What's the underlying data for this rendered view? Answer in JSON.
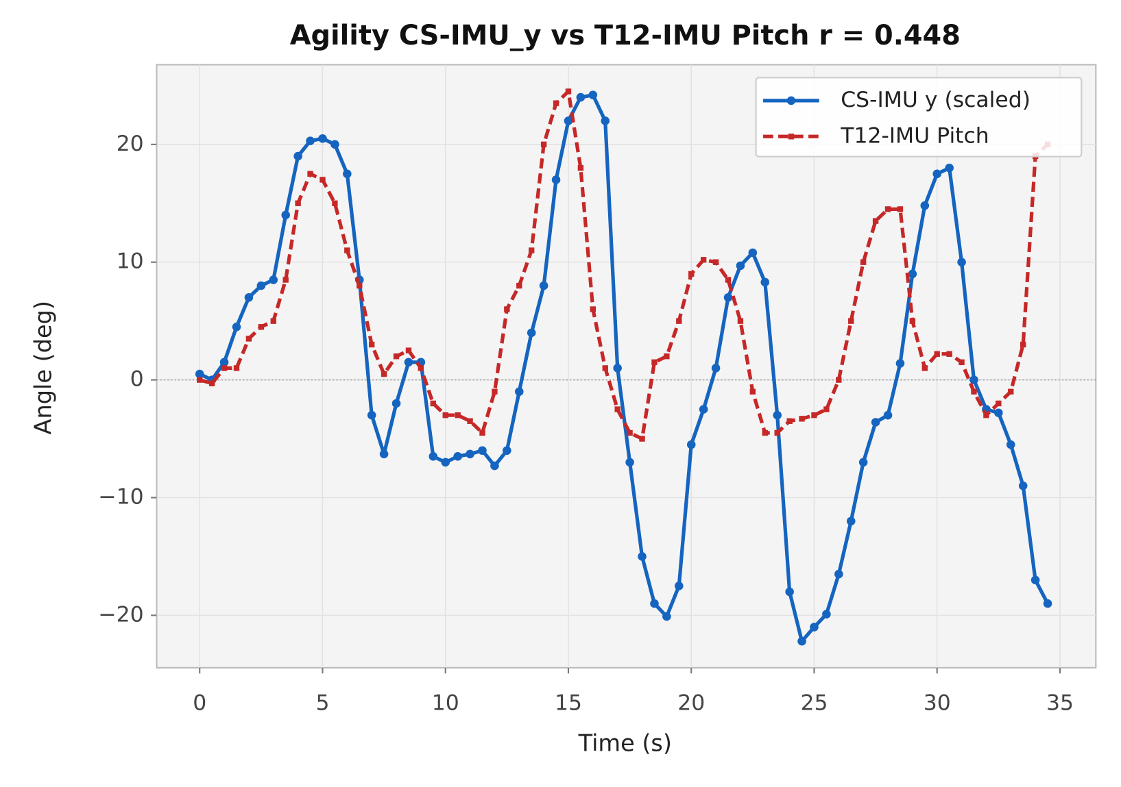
{
  "chart_data": {
    "type": "line",
    "title": "Agility  CS-IMU_y vs T12-IMU Pitch   r = 0.448",
    "xlabel": "Time (s)",
    "ylabel": "Angle (deg)",
    "x": [
      0,
      0.5,
      1,
      1.5,
      2,
      2.5,
      3,
      3.5,
      4,
      4.5,
      5,
      5.5,
      6,
      6.5,
      7,
      7.5,
      8,
      8.5,
      9,
      9.5,
      10,
      10.5,
      11,
      11.5,
      12,
      12.5,
      13,
      13.5,
      14,
      14.5,
      15,
      15.5,
      16,
      16.5,
      17,
      17.5,
      18,
      18.5,
      19,
      19.5,
      20,
      20.5,
      21,
      21.5,
      22,
      22.5,
      23,
      23.5,
      24,
      24.5,
      25,
      25.5,
      26,
      26.5,
      27,
      27.5,
      28,
      28.5,
      29,
      29.5,
      30,
      30.5,
      31,
      31.5,
      32,
      32.5,
      33,
      33.5,
      34,
      34.5
    ],
    "series": [
      {
        "name": "CS-IMU y (scaled)",
        "color": "#1565c0",
        "marker": "circle",
        "dash": false,
        "values": [
          0.5,
          0,
          1.5,
          4.5,
          7,
          8,
          8.5,
          14,
          19,
          20.3,
          20.5,
          20,
          17.5,
          8.5,
          -3,
          -6.3,
          -2,
          1.5,
          1.5,
          -6.5,
          -7,
          -6.5,
          -6.3,
          -6,
          -7.3,
          -6,
          -1,
          4,
          8,
          17,
          22,
          24,
          24.2,
          22,
          1,
          -7,
          -15,
          -19,
          -20.1,
          -17.5,
          -5.5,
          -2.5,
          1,
          7,
          9.7,
          10.8,
          8.3,
          -3,
          -18,
          -22.2,
          -21,
          -19.9,
          -16.5,
          -12,
          -7,
          -3.6,
          -3,
          1.4,
          9,
          14.8,
          17.5,
          18,
          10,
          0,
          -2.5,
          -2.8,
          -5.5,
          -9,
          -17,
          -19
        ]
      },
      {
        "name": "T12-IMU Pitch",
        "color": "#c62828",
        "marker": "square",
        "dash": true,
        "values": [
          0,
          -0.3,
          1,
          1,
          3.5,
          4.5,
          5,
          8.5,
          15,
          17.5,
          17,
          15,
          11,
          8,
          3,
          0.5,
          2,
          2.5,
          1,
          -2,
          -3,
          -3,
          -3.5,
          -4.5,
          -1,
          6,
          8,
          11,
          20,
          23.5,
          24.5,
          18,
          6,
          1,
          -2.5,
          -4.5,
          -5,
          1.5,
          2,
          5,
          9,
          10.2,
          10,
          8.5,
          5,
          -1,
          -4.5,
          -4.5,
          -3.5,
          -3.3,
          -3,
          -2.5,
          0,
          5,
          10,
          13.5,
          14.5,
          14.5,
          5,
          1,
          2.2,
          2.2,
          1.5,
          -1,
          -3,
          -2,
          -1,
          3,
          19,
          20
        ]
      }
    ],
    "xlim": [
      -1.75,
      36.46
    ],
    "ylim": [
      -24.45,
      26.77
    ],
    "xticks": [
      0,
      5,
      10,
      15,
      20,
      25,
      30,
      35
    ],
    "yticks": [
      {
        "value": -20,
        "label": "−20"
      },
      {
        "value": -10,
        "label": "−10"
      },
      0,
      10,
      20
    ],
    "reference_line": 0,
    "grid": true,
    "legend": "upper right"
  }
}
